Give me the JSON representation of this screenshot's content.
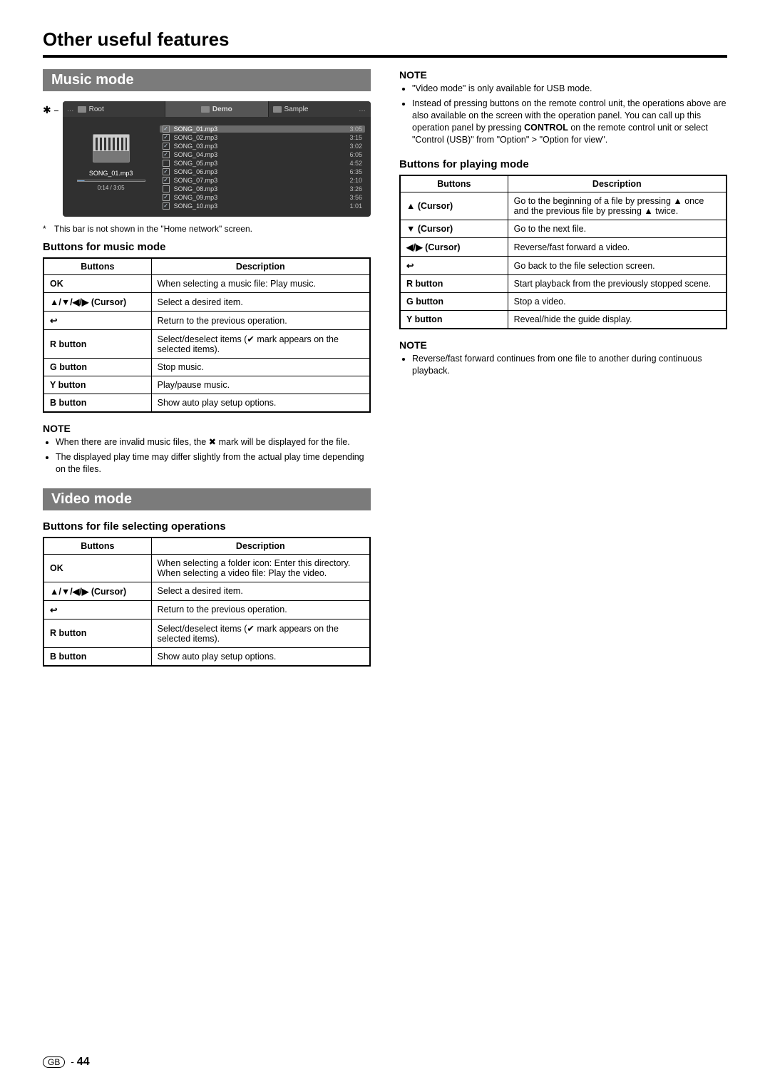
{
  "page": {
    "title": "Other useful features",
    "footer_region": "GB",
    "footer_page": "44"
  },
  "music": {
    "heading": "Music mode",
    "player": {
      "top_left_label": "Root",
      "top_center_label": "Demo",
      "top_right_label": "Sample",
      "now_playing_title": "SONG_01.mp3",
      "now_playing_time": "0:14 / 3:05",
      "songs": [
        {
          "name": "SONG_01.mp3",
          "dur": "3:05",
          "checked": true,
          "selected": true
        },
        {
          "name": "SONG_02.mp3",
          "dur": "3:15",
          "checked": true,
          "selected": false
        },
        {
          "name": "SONG_03.mp3",
          "dur": "3:02",
          "checked": true,
          "selected": false
        },
        {
          "name": "SONG_04.mp3",
          "dur": "6:05",
          "checked": true,
          "selected": false
        },
        {
          "name": "SONG_05.mp3",
          "dur": "4:52",
          "checked": false,
          "selected": false
        },
        {
          "name": "SONG_06.mp3",
          "dur": "6:35",
          "checked": true,
          "selected": false
        },
        {
          "name": "SONG_07.mp3",
          "dur": "2:10",
          "checked": true,
          "selected": false
        },
        {
          "name": "SONG_08.mp3",
          "dur": "3:26",
          "checked": false,
          "selected": false
        },
        {
          "name": "SONG_09.mp3",
          "dur": "3:56",
          "checked": true,
          "selected": false
        },
        {
          "name": "SONG_10.mp3",
          "dur": "1:01",
          "checked": true,
          "selected": false
        }
      ]
    },
    "footnote": "This bar is not shown in the \"Home network\" screen.",
    "table_heading": "Buttons for music mode",
    "table": {
      "h1": "Buttons",
      "h2": "Description",
      "rows": [
        {
          "b": "OK",
          "d": "When selecting a music file: Play music."
        },
        {
          "b": "▲/▼/◀/▶ (Cursor)",
          "d": "Select a desired item."
        },
        {
          "b": "↩",
          "d": "Return to the previous operation."
        },
        {
          "b": "R button",
          "d": "Select/deselect items (✔ mark appears on the selected items)."
        },
        {
          "b": "G button",
          "d": "Stop music."
        },
        {
          "b": "Y button",
          "d": "Play/pause music."
        },
        {
          "b": "B button",
          "d": "Show auto play setup options."
        }
      ]
    },
    "note_heading": "NOTE",
    "notes": [
      "When there are invalid music files, the ✖ mark will be displayed for the file.",
      "The displayed play time may differ slightly from the actual play time depending on the files."
    ]
  },
  "video": {
    "heading": "Video mode",
    "table1_heading": "Buttons for file selecting operations",
    "table1": {
      "h1": "Buttons",
      "h2": "Description",
      "rows": [
        {
          "b": "OK",
          "d": "When selecting a folder icon: Enter this directory.\nWhen selecting a video file: Play the video."
        },
        {
          "b": "▲/▼/◀/▶ (Cursor)",
          "d": "Select a desired item."
        },
        {
          "b": "↩",
          "d": "Return to the previous operation."
        },
        {
          "b": "R button",
          "d": "Select/deselect items (✔ mark appears on the selected items)."
        },
        {
          "b": "B button",
          "d": "Show auto play setup options."
        }
      ]
    },
    "note1_heading": "NOTE",
    "notes1": [
      "\"Video mode\" is only available for USB mode.",
      "Instead of pressing buttons on the remote control unit, the operations above are also available on the screen with the operation panel. You can call up this operation panel by pressing CONTROL on the remote control unit or select \"Control (USB)\" from \"Option\" > \"Option for view\"."
    ],
    "table2_heading": "Buttons for playing mode",
    "table2": {
      "h1": "Buttons",
      "h2": "Description",
      "rows": [
        {
          "b": "▲ (Cursor)",
          "d": "Go to the beginning of a file by pressing ▲ once and the previous file by pressing ▲ twice."
        },
        {
          "b": "▼ (Cursor)",
          "d": "Go to the next file."
        },
        {
          "b": "◀/▶ (Cursor)",
          "d": "Reverse/fast forward a video."
        },
        {
          "b": "↩",
          "d": "Go back to the file selection screen."
        },
        {
          "b": "R button",
          "d": "Start playback from the previously stopped scene."
        },
        {
          "b": "G button",
          "d": "Stop a video."
        },
        {
          "b": "Y button",
          "d": "Reveal/hide the guide display."
        }
      ]
    },
    "note2_heading": "NOTE",
    "notes2": [
      "Reverse/fast forward continues from one file to another during continuous playback."
    ]
  }
}
